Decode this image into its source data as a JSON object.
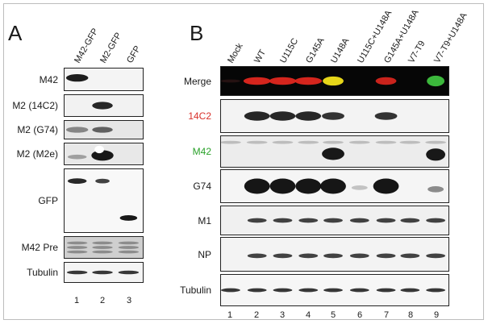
{
  "panel_a": {
    "letter": "A",
    "columns": [
      "M42-GFP",
      "M2-GFP",
      "GFP"
    ],
    "rows": [
      {
        "label": "M42",
        "color": "#1a1a1a"
      },
      {
        "label": "M2 (14C2)",
        "color": "#1a1a1a"
      },
      {
        "label": "M2 (G74)",
        "color": "#1a1a1a"
      },
      {
        "label": "M2 (M2e)",
        "color": "#1a1a1a"
      },
      {
        "label": "GFP",
        "color": "#1a1a1a"
      },
      {
        "label": "M42 Pre",
        "color": "#1a1a1a"
      },
      {
        "label": "Tubulin",
        "color": "#1a1a1a"
      }
    ],
    "lanes": [
      "1",
      "2",
      "3"
    ]
  },
  "panel_b": {
    "letter": "B",
    "columns": [
      "Mock",
      "WT",
      "U115C",
      "G145A",
      "U148A",
      "U115C+U148A",
      "G145A+U148A",
      "V7-T9",
      "V7-T9+U148A"
    ],
    "rows": [
      {
        "label": "Merge",
        "color": "#1a1a1a"
      },
      {
        "label": "14C2",
        "color": "#d8302a"
      },
      {
        "label": "M42",
        "color": "#2aa12a"
      },
      {
        "label": "G74",
        "color": "#1a1a1a"
      },
      {
        "label": "M1",
        "color": "#1a1a1a"
      },
      {
        "label": "NP",
        "color": "#1a1a1a"
      },
      {
        "label": "Tubulin",
        "color": "#1a1a1a"
      }
    ],
    "lanes": [
      "1",
      "2",
      "3",
      "4",
      "5",
      "6",
      "7",
      "8",
      "9"
    ]
  }
}
